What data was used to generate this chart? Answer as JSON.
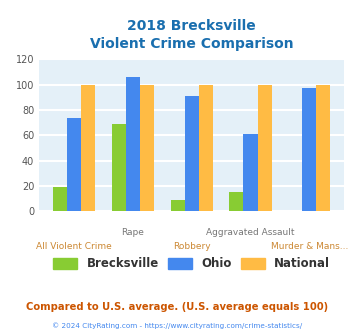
{
  "title_line1": "2018 Brecksville",
  "title_line2": "Violent Crime Comparison",
  "title_color": "#1a6faf",
  "cat_top": [
    "",
    "Rape",
    "",
    "Aggravated Assault",
    ""
  ],
  "cat_bottom": [
    "All Violent Crime",
    "",
    "Robbery",
    "",
    "Murder & Mans..."
  ],
  "brecksville": [
    19,
    69,
    9,
    15,
    0
  ],
  "ohio": [
    74,
    106,
    91,
    61,
    97
  ],
  "national": [
    100,
    100,
    100,
    100,
    100
  ],
  "brecksville_color": "#88cc33",
  "ohio_color": "#4488ee",
  "national_color": "#ffbb44",
  "ylim": [
    0,
    120
  ],
  "yticks": [
    0,
    20,
    40,
    60,
    80,
    100,
    120
  ],
  "background_color": "#ffffff",
  "plot_bg": "#e4f0f8",
  "grid_color": "#ffffff",
  "footnote": "Compared to U.S. average. (U.S. average equals 100)",
  "footnote_color": "#cc5500",
  "copyright": "© 2024 CityRating.com - https://www.cityrating.com/crime-statistics/",
  "copyright_color": "#4488ee",
  "cat_top_color": "#777777",
  "cat_bottom_color": "#cc8833"
}
